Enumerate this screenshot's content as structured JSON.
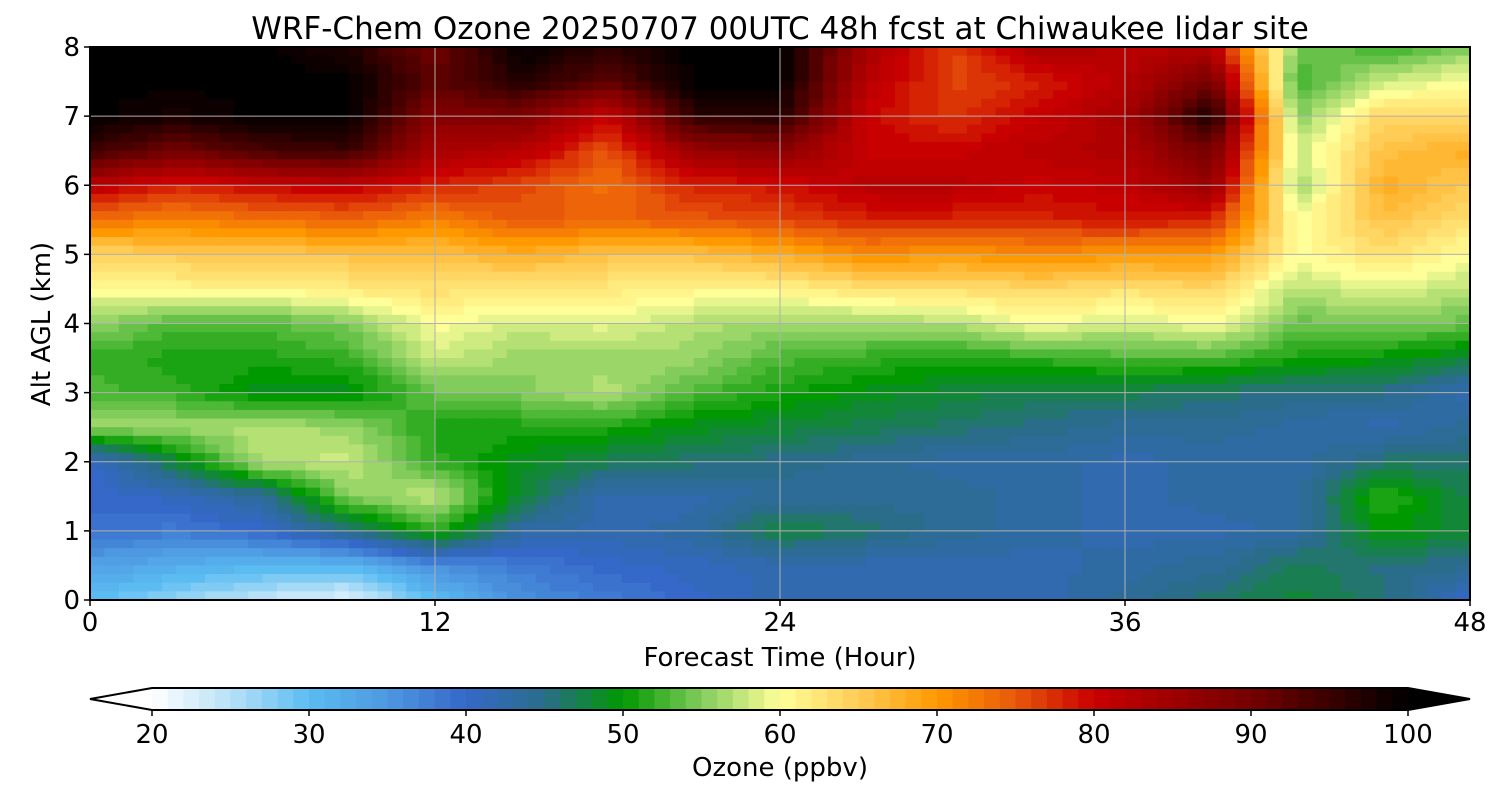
{
  "chart_data": {
    "type": "heatmap",
    "title": "WRF-Chem Ozone  20250707 00UTC 48h fcst at Chiwaukee lidar site",
    "xlabel": "Forecast Time (Hour)",
    "ylabel": "Alt AGL (km)",
    "xlim": [
      0,
      48
    ],
    "ylim": [
      0,
      8
    ],
    "x_ticks": [
      0,
      12,
      24,
      36,
      48
    ],
    "y_ticks": [
      0,
      1,
      2,
      3,
      4,
      5,
      6,
      7,
      8
    ],
    "grid": true,
    "x": [
      0,
      3,
      6,
      9,
      12,
      15,
      18,
      21,
      24,
      27,
      30,
      33,
      36,
      39,
      42,
      45,
      48
    ],
    "y": [
      0,
      0.5,
      1,
      1.5,
      2,
      2.5,
      3,
      3.5,
      4,
      4.5,
      5,
      5.5,
      6,
      6.5,
      7,
      7.5,
      8
    ],
    "z": [
      [
        30,
        27,
        24,
        22,
        30,
        36,
        38,
        40,
        42,
        42,
        42,
        42,
        44,
        46,
        48,
        46,
        40
      ],
      [
        34,
        32,
        31,
        31,
        36,
        38,
        40,
        41,
        42,
        42,
        42,
        42,
        43,
        44,
        47,
        45,
        45
      ],
      [
        39,
        38,
        40,
        45,
        52,
        43,
        42,
        43,
        48,
        46,
        44,
        43,
        42,
        42,
        43,
        50,
        48
      ],
      [
        40,
        41,
        44,
        55,
        58,
        48,
        42,
        42,
        44,
        44,
        44,
        43,
        42,
        43,
        43,
        52,
        47
      ],
      [
        40,
        48,
        57,
        58,
        52,
        49,
        47,
        46,
        45,
        44,
        43,
        43,
        42,
        43,
        43,
        46,
        46
      ],
      [
        56,
        56,
        57,
        56,
        51,
        51,
        51,
        49,
        48,
        47,
        46,
        45,
        44,
        44,
        43,
        42,
        44
      ],
      [
        53,
        52,
        49,
        49,
        54,
        55,
        57,
        53,
        51,
        49,
        48,
        47,
        47,
        46,
        45,
        45,
        42
      ],
      [
        52,
        51,
        51,
        52,
        58,
        56,
        56,
        56,
        53,
        52,
        51,
        52,
        53,
        53,
        51,
        50,
        48
      ],
      [
        56,
        53,
        53,
        55,
        60,
        58,
        59,
        57,
        56,
        56,
        57,
        60,
        58,
        60,
        54,
        55,
        54
      ],
      [
        60,
        61,
        61,
        62,
        63,
        62,
        62,
        61,
        61,
        63,
        63,
        64,
        63,
        64,
        57,
        59,
        57
      ],
      [
        64,
        65,
        65,
        66,
        66,
        68,
        66,
        66,
        68,
        71,
        70,
        71,
        70,
        70,
        60,
        63,
        60
      ],
      [
        73,
        72,
        73,
        74,
        72,
        75,
        74,
        75,
        76,
        78,
        78,
        78,
        79,
        78,
        60,
        66,
        63
      ],
      [
        82,
        78,
        80,
        81,
        78,
        76,
        73,
        78,
        79,
        82,
        82,
        80,
        81,
        86,
        56,
        68,
        65
      ],
      [
        95,
        90,
        94,
        95,
        84,
        82,
        75,
        86,
        87,
        80,
        80,
        82,
        83,
        90,
        58,
        66,
        68
      ],
      [
        100,
        98,
        100,
        100,
        88,
        89,
        80,
        96,
        97,
        80,
        77,
        80,
        84,
        98,
        55,
        64,
        63
      ],
      [
        100,
        100,
        100,
        100,
        92,
        97,
        92,
        100,
        100,
        82,
        76,
        78,
        82,
        90,
        52,
        58,
        60
      ],
      [
        100,
        100,
        100,
        97,
        90,
        100,
        96,
        100,
        100,
        84,
        76,
        84,
        82,
        82,
        55,
        52,
        55
      ]
    ],
    "colorbar": {
      "label": "Ozone  (ppbv)",
      "range": [
        20,
        100
      ],
      "ticks": [
        20,
        30,
        40,
        50,
        60,
        70,
        80,
        90,
        100
      ],
      "extend": "both"
    },
    "colors": {
      "20": "#ffffff",
      "25": "#b7e1f7",
      "30": "#5bbcf2",
      "35": "#4d98e0",
      "40": "#3568c8",
      "45": "#2a6d8a",
      "50": "#009900",
      "55": "#82cc5c",
      "60": "#ffff99",
      "65": "#ffcc55",
      "70": "#ff9900",
      "75": "#e8580a",
      "80": "#c80000",
      "90": "#740000",
      "100": "#000000"
    }
  }
}
